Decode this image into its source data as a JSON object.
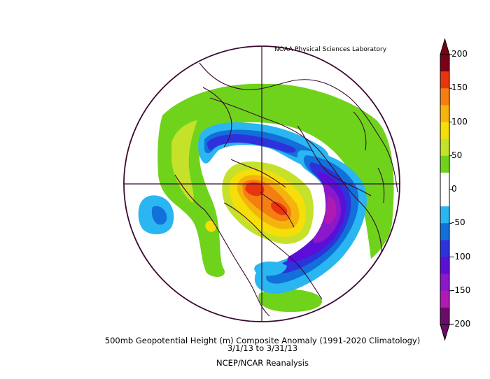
{
  "credit": "NOAA Physical Sciences Laboratory",
  "title": "500mb Geopotential Height (m) Composite Anomaly (1991-2020 Climatology)",
  "dates": "3/1/13   to 3/31/13",
  "source": "NCEP/NCAR Reanalysis",
  "colorbar": {
    "labels": [
      "200",
      "150",
      "100",
      "50",
      "0",
      "-50",
      "-100",
      "-150",
      "-200"
    ],
    "colors": [
      "#7a0018",
      "#e8350c",
      "#f47e12",
      "#f5b40d",
      "#f5de0a",
      "#c5e12a",
      "#6fd31c",
      "#ffffff",
      "#ffffff",
      "#2ab6f0",
      "#1170d9",
      "#2d32db",
      "#5b0fd6",
      "#8b18c9",
      "#b01ab4",
      "#6a0c6a"
    ]
  }
}
